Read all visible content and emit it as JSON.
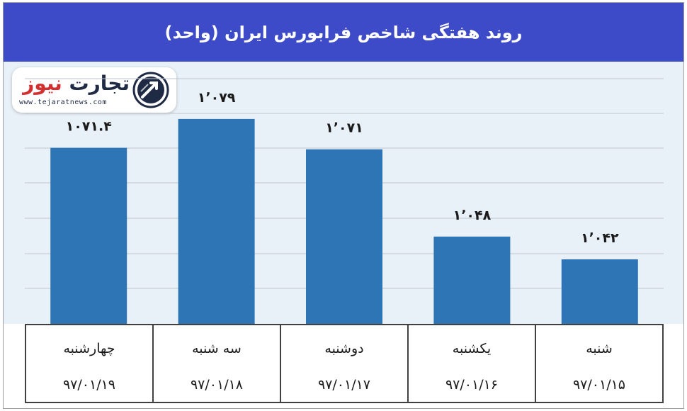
{
  "title": "روند هفتگی شاخص فرابورس ایران (واحد)",
  "logo": {
    "name_part1": "تجارت",
    "name_part2": "نیوز",
    "url": "www.tejaratnews.com",
    "icon": "tejaratnews-logo-icon"
  },
  "colors": {
    "title_bg": "#3e4bc8",
    "plot_bg": "#e9f1f8",
    "bar": "#2e75b6",
    "grid": "#bfc6cd"
  },
  "chart_data": {
    "type": "bar",
    "title": "روند هفتگی شاخص فرابورس ایران (واحد)",
    "categories": [
      "شنبه",
      "یکشنبه",
      "دوشنبه",
      "سه شنبه",
      "چهارشنبه"
    ],
    "dates": [
      "۹۷/۰۱/۱۵",
      "۹۷/۰۱/۱۶",
      "۹۷/۰۱/۱۷",
      "۹۷/۰۱/۱۸",
      "۹۷/۰۱/۱۹"
    ],
    "values": [
      1042,
      1048,
      1071,
      1079,
      1071.4
    ],
    "data_labels": [
      "۱٬۰۴۲",
      "۱٬۰۴۸",
      "۱٬۰۷۱",
      "۱٬۰۷۹",
      "۱۰۷۱.۴"
    ],
    "category_order": "right-to-left",
    "ylim": [
      1025,
      1090
    ],
    "grid": true,
    "legend": false
  }
}
